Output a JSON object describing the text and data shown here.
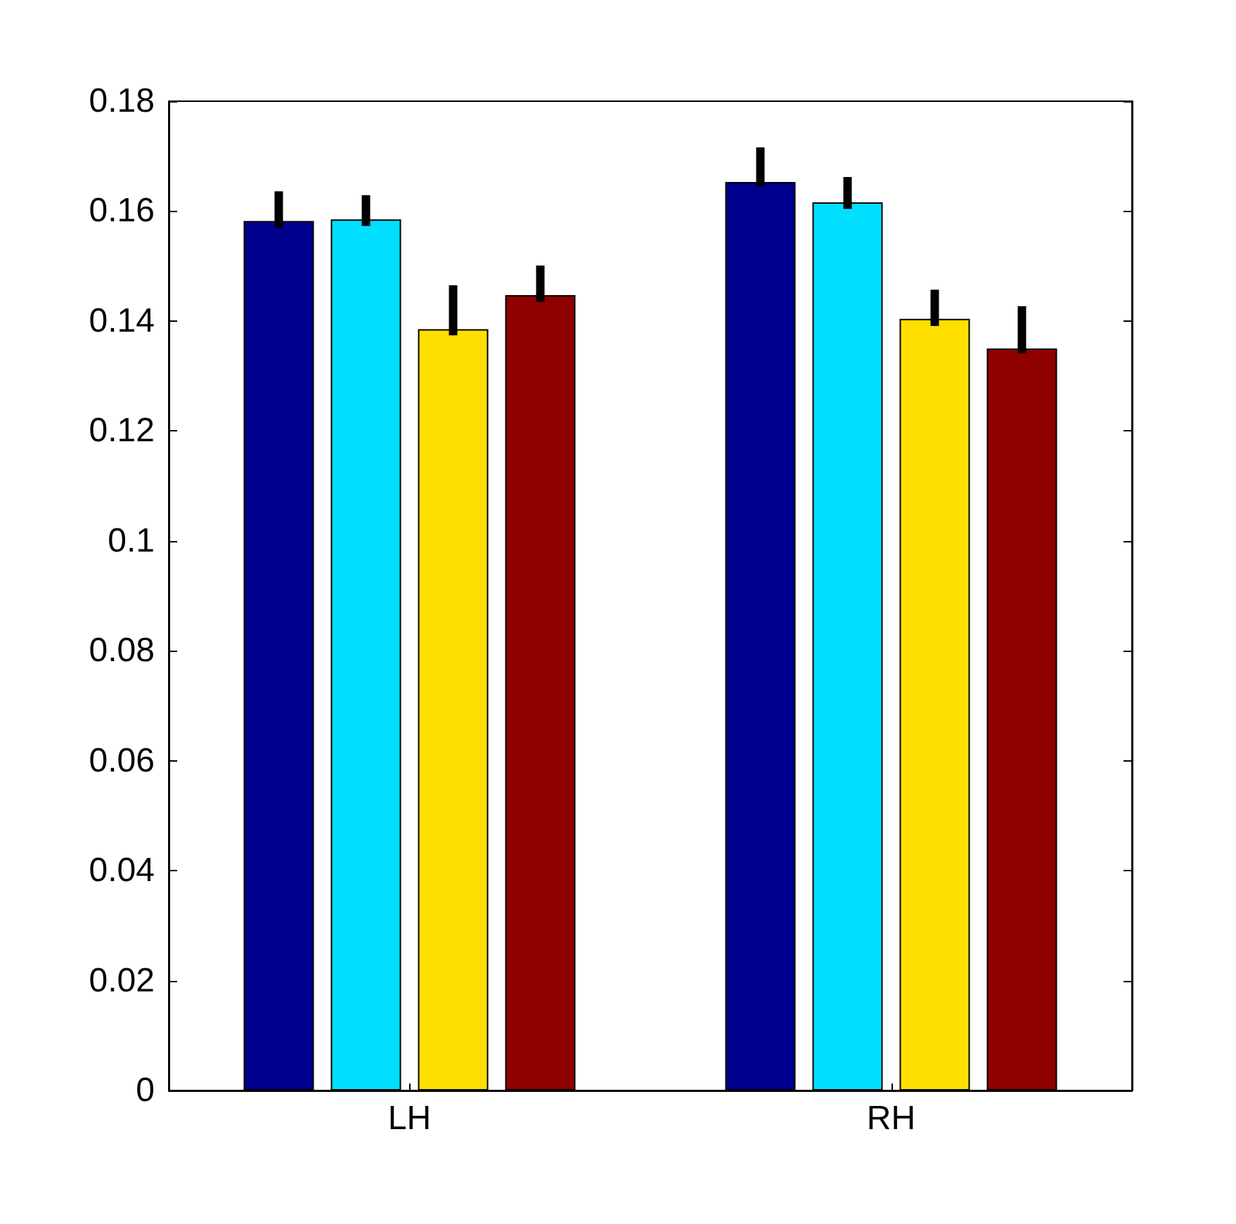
{
  "chart_data": {
    "type": "bar",
    "categories": [
      "LH",
      "RH"
    ],
    "series": [
      {
        "color": "#00008f",
        "values": [
          0.1582,
          0.1653
        ],
        "errors": [
          [
            0.157,
            0.1636
          ],
          [
            0.1645,
            0.1716
          ]
        ]
      },
      {
        "color": "#00dfff",
        "values": [
          0.1585,
          0.1616
        ],
        "errors": [
          [
            0.1573,
            0.1629
          ],
          [
            0.1604,
            0.1662
          ]
        ]
      },
      {
        "color": "#ffdf00",
        "values": [
          0.1385,
          0.1404
        ],
        "errors": [
          [
            0.1374,
            0.1465
          ],
          [
            0.1391,
            0.1457
          ]
        ]
      },
      {
        "color": "#8f0000",
        "values": [
          0.1447,
          0.135
        ],
        "errors": [
          [
            0.1435,
            0.1501
          ],
          [
            0.1341,
            0.1427
          ]
        ]
      }
    ],
    "ylim": [
      0,
      0.18
    ],
    "yticks": [
      0,
      0.02,
      0.04,
      0.06,
      0.08,
      0.1,
      0.12,
      0.14,
      0.16,
      0.18
    ],
    "grid": false
  }
}
